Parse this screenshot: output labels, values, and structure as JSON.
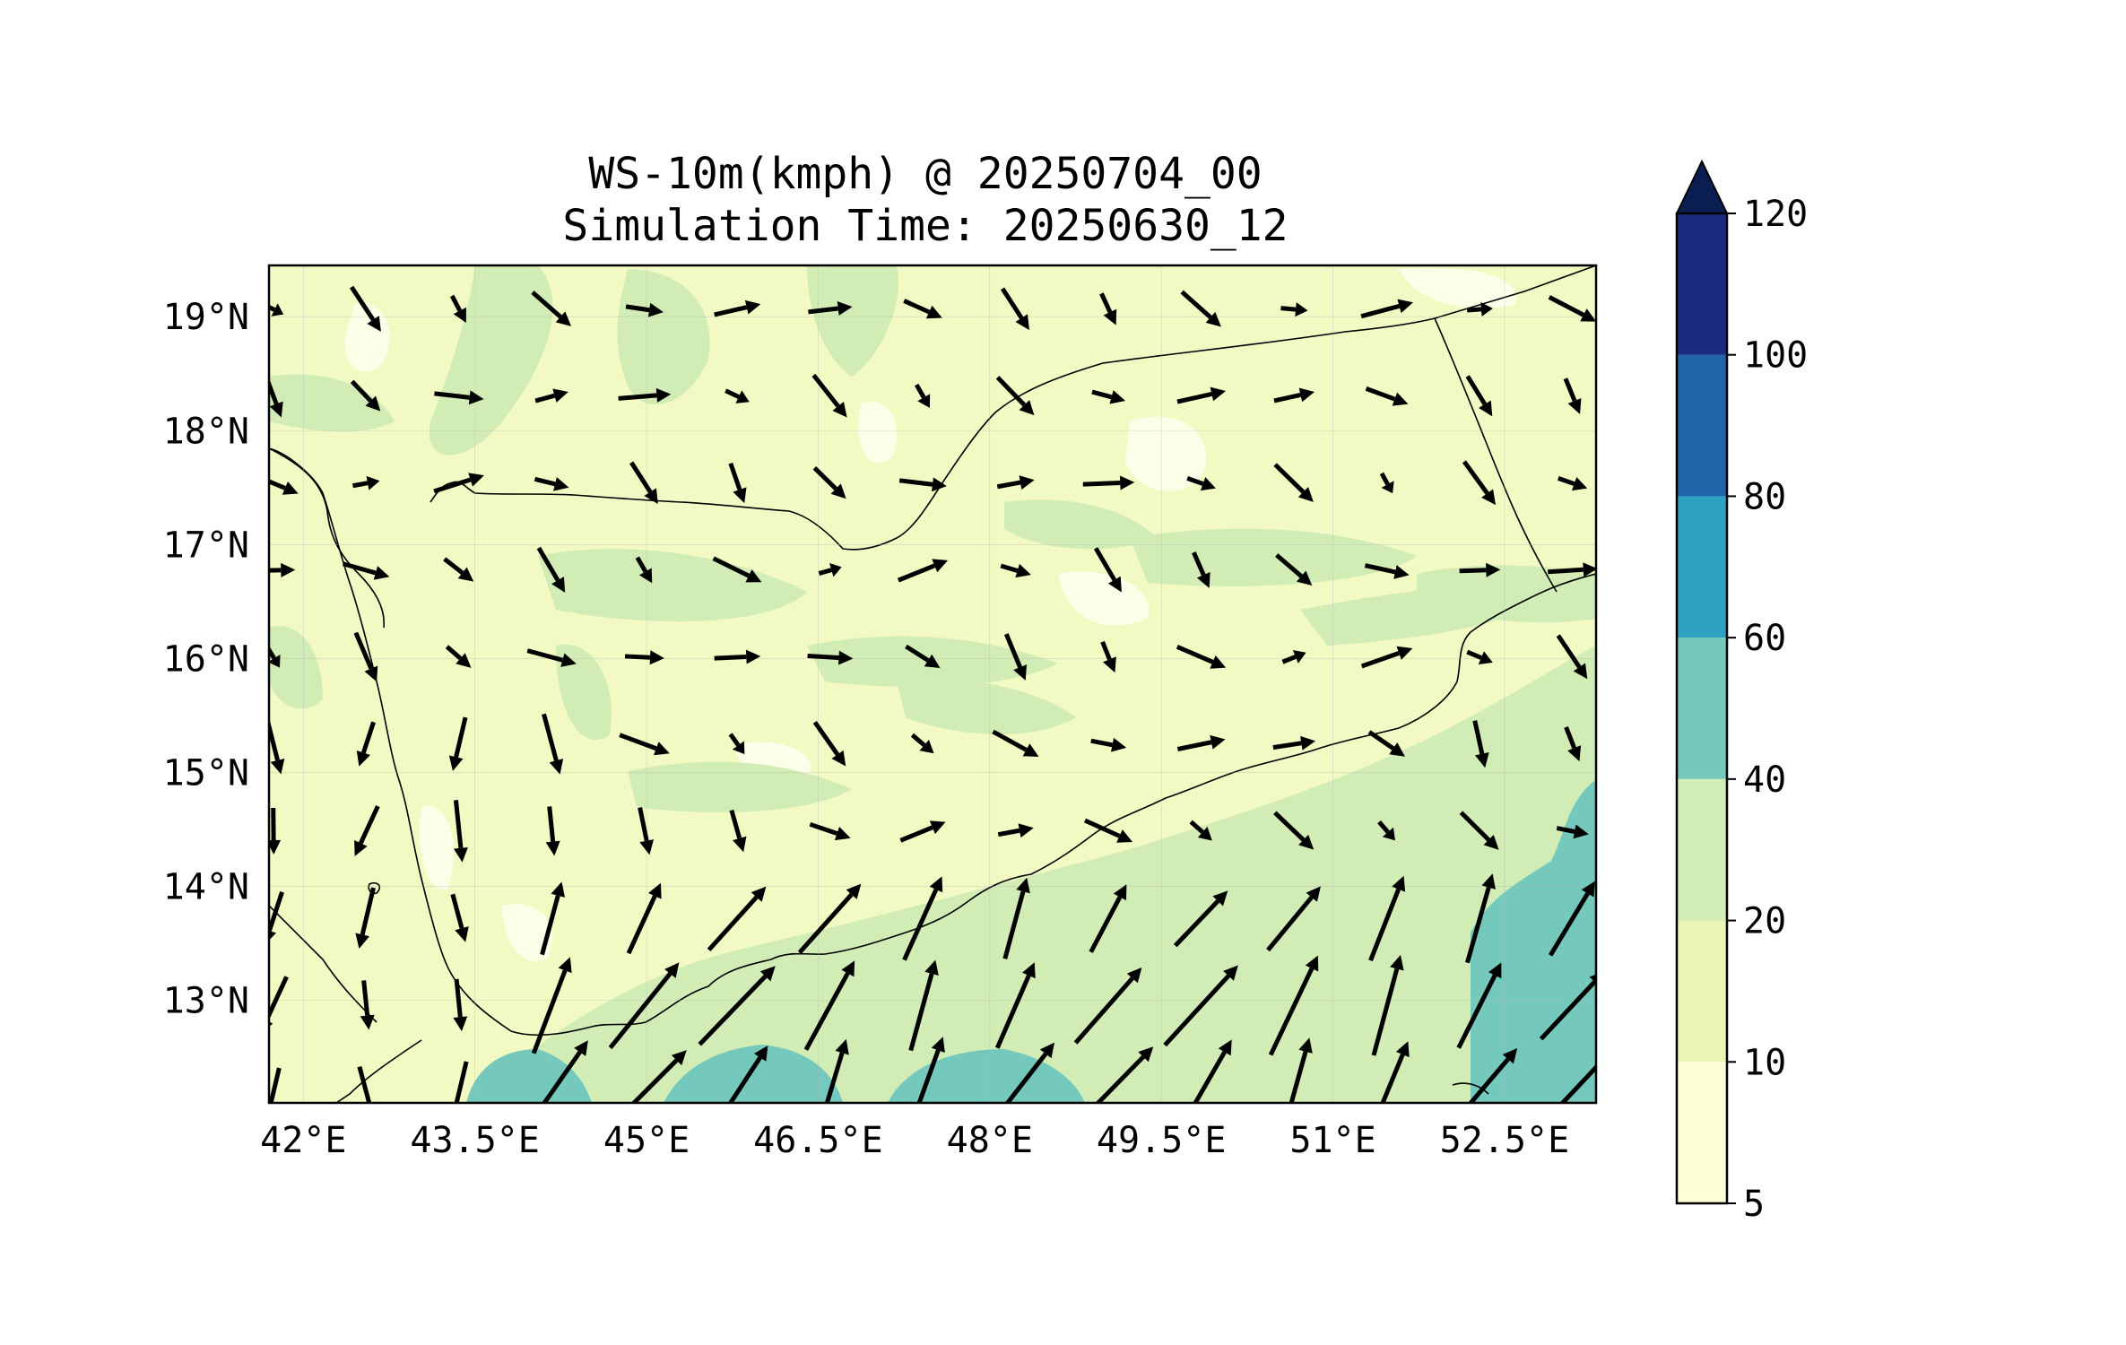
{
  "title": {
    "line1": "WS-10m(kmph) @ 20250704_00",
    "line2": "Simulation Time: 20250630_12"
  },
  "map": {
    "variable": "10 m wind speed and direction",
    "lon_range": [
      41.7,
      53.3
    ],
    "lat_range": [
      12.1,
      19.45
    ],
    "lon_ticks": [
      "42°E",
      "43.5°E",
      "45°E",
      "46.5°E",
      "48°E",
      "49.5°E",
      "51°E",
      "52.5°E"
    ],
    "lat_ticks": [
      "19°N",
      "18°N",
      "17°N",
      "16°N",
      "15°N",
      "14°N",
      "13°N"
    ],
    "colors": {
      "background_fill": "#f2f9c3",
      "band_10_20": "#eaf6b4",
      "band_20_40": "#d1ecb5",
      "band_40_60": "#74c8bc",
      "light_patch": "#fcfee8",
      "boundary_line": "#000000",
      "vector_arrow": "#000000"
    }
  },
  "colorbar": {
    "ticks": [
      "5",
      "10",
      "20",
      "40",
      "60",
      "80",
      "100",
      "120"
    ],
    "extend": "max",
    "colors": [
      "#fcfed8",
      "#eaf6b4",
      "#d1ecb5",
      "#74c8bc",
      "#2da2c1",
      "#2164aa",
      "#1b2b7e",
      "#0b1e52"
    ]
  }
}
